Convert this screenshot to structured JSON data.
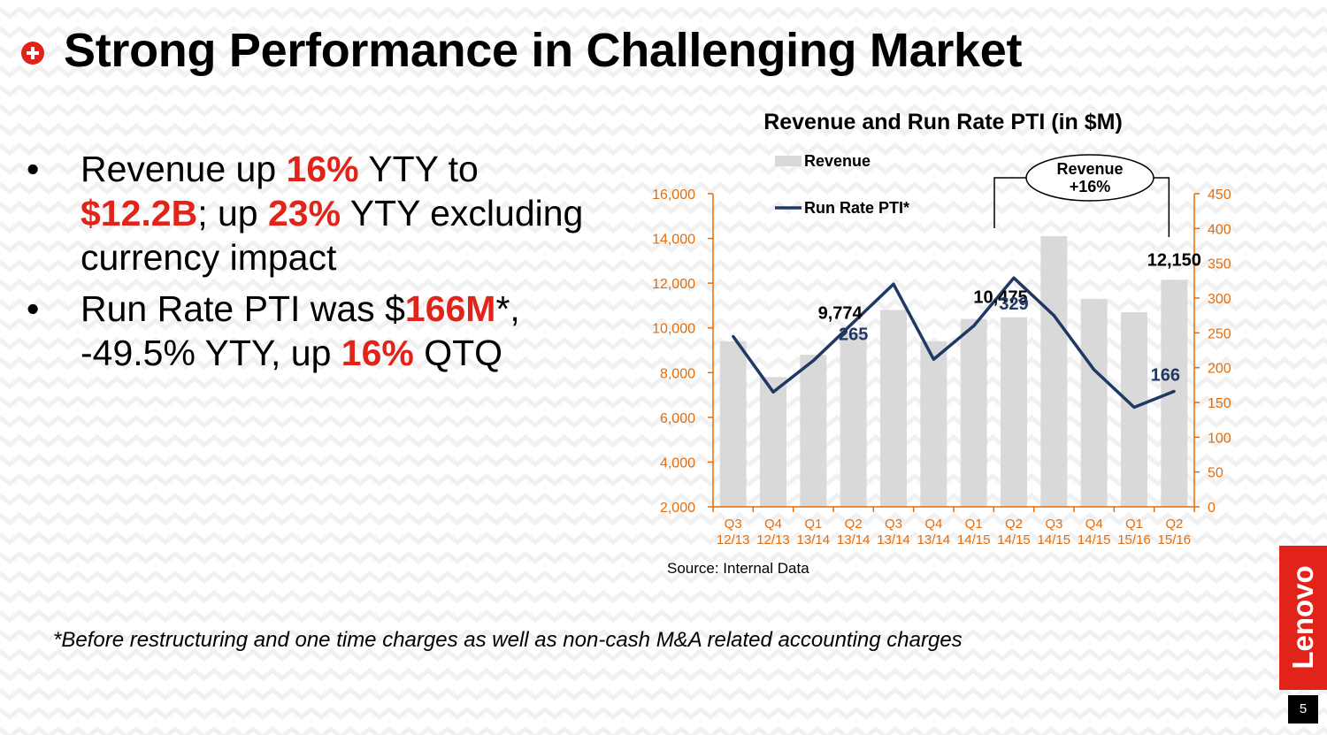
{
  "slide": {
    "title": "Strong Performance in Challenging Market",
    "bullets": [
      [
        {
          "text": "Revenue up ",
          "hl": false
        },
        {
          "text": "16%",
          "hl": true
        },
        {
          "text": " YTY to ",
          "hl": false
        },
        {
          "text": "$12.2B",
          "hl": true
        },
        {
          "text": "; up ",
          "hl": false
        },
        {
          "text": "23%",
          "hl": true
        },
        {
          "text": " YTY excluding currency impact",
          "hl": false
        }
      ],
      [
        {
          "text": "Run Rate PTI was $",
          "hl": false
        },
        {
          "text": "166M",
          "hl": true
        },
        {
          "text": "*, -49.5% YTY, up ",
          "hl": false
        },
        {
          "text": "16%",
          "hl": true
        },
        {
          "text": " QTQ",
          "hl": false
        }
      ]
    ],
    "bullet_symbol": "•",
    "footnote": "*Before restructuring and one time charges as well as non-cash M&A related accounting charges",
    "source": "Source: Internal Data",
    "logo": "Lenovo",
    "page_number": "5",
    "icon": "plus-circle-icon"
  },
  "colors": {
    "accent": "#e2231a",
    "bar": "#d9d9d9",
    "line": "#1f3864",
    "axis": "#e46c0a",
    "text": "#000000"
  },
  "chart_data": {
    "type": "bar",
    "title": "Revenue and Run Rate PTI (in $M)",
    "categories": [
      [
        "Q3",
        "12/13"
      ],
      [
        "Q4",
        "12/13"
      ],
      [
        "Q1",
        "13/14"
      ],
      [
        "Q2",
        "13/14"
      ],
      [
        "Q3",
        "13/14"
      ],
      [
        "Q4",
        "13/14"
      ],
      [
        "Q1",
        "14/15"
      ],
      [
        "Q2",
        "14/15"
      ],
      [
        "Q3",
        "14/15"
      ],
      [
        "Q4",
        "14/15"
      ],
      [
        "Q1",
        "15/16"
      ],
      [
        "Q2",
        "15/16"
      ]
    ],
    "series": [
      {
        "name": "Revenue",
        "type": "bar",
        "axis": "left",
        "values": [
          9400,
          7800,
          8800,
          9774,
          10800,
          9400,
          10400,
          10475,
          14100,
          11300,
          10700,
          12150
        ]
      },
      {
        "name": "Run Rate PTI*",
        "type": "line",
        "axis": "right",
        "values": [
          245,
          165,
          210,
          265,
          320,
          212,
          260,
          329,
          275,
          197,
          143,
          166
        ]
      }
    ],
    "left_axis": {
      "min": 2000,
      "max": 16000,
      "step": 2000,
      "tick_labels": [
        "2,000",
        "4,000",
        "6,000",
        "8,000",
        "10,000",
        "12,000",
        "14,000",
        "16,000"
      ]
    },
    "right_axis": {
      "min": 0,
      "max": 450,
      "step": 50,
      "tick_labels": [
        "0",
        "50",
        "100",
        "150",
        "200",
        "250",
        "300",
        "350",
        "400",
        "450"
      ]
    },
    "bar_labels": [
      {
        "index": 3,
        "text": "9,774"
      },
      {
        "index": 7,
        "text": "10,475"
      },
      {
        "index": 11,
        "text": "12,150"
      }
    ],
    "line_labels": [
      {
        "index": 3,
        "text": "265"
      },
      {
        "index": 7,
        "text": "329"
      },
      {
        "index": 11,
        "text": "166"
      }
    ],
    "annotation": {
      "text": [
        "Revenue",
        "+16%"
      ],
      "from_index": 7,
      "to_index": 11
    },
    "legend": "top-left",
    "grid": false
  }
}
